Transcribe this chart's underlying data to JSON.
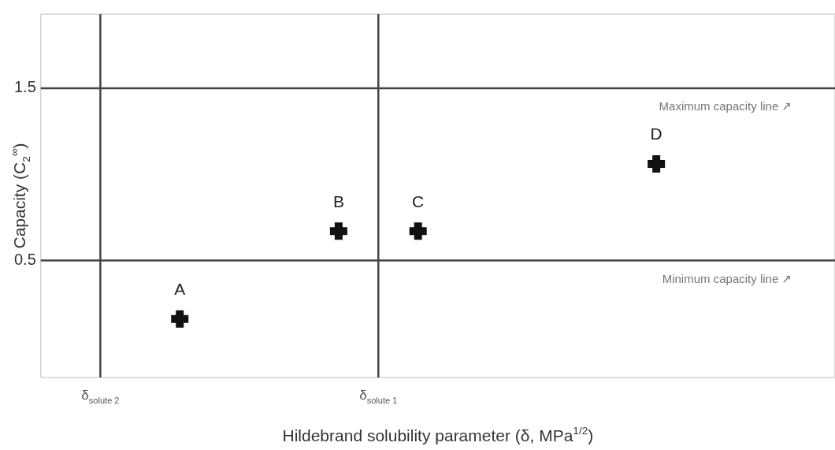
{
  "chart_data": {
    "type": "scatter",
    "xlabel": "Hildebrand solubility parameter (δ, MPa$^{1/2}$)",
    "ylabel": "Capacity (C$_{2}$$^{∞}$)",
    "categories": [
      null,
      "δ$_{solute 2}$",
      null,
      null,
      null,
      null,
      null,
      null,
      "δ$_{solute 1}$",
      null,
      null,
      null,
      null,
      null,
      null,
      null,
      null,
      null,
      null,
      null
    ],
    "values": [
      null,
      null,
      null,
      0.16,
      null,
      null,
      null,
      0.67,
      null,
      0.67,
      null,
      null,
      null,
      null,
      null,
      1.06,
      null,
      null,
      null,
      null
    ],
    "value_labels": [
      null,
      null,
      null,
      "A",
      null,
      null,
      null,
      "B",
      null,
      "C",
      null,
      null,
      null,
      null,
      null,
      "D",
      null,
      null,
      null,
      null
    ],
    "color": "#111111",
    "marker": "cross",
    "ylim": [
      -0.18,
      1.93
    ],
    "yticks": [
      0.5,
      1.5
    ],
    "ref_lines": [
      {
        "axis": "y",
        "value": 1.5,
        "label": "Maximum capacity line ↗",
        "color": "#444444"
      },
      {
        "axis": "y",
        "value": 0.5,
        "label": "Minimum capacity line ↗",
        "color": "#444444"
      },
      {
        "axis": "x",
        "value": "δ$_{solute 2}$",
        "color": "#444444"
      },
      {
        "axis": "x",
        "value": "δ$_{solute 1}$",
        "color": "#444444"
      }
    ]
  }
}
